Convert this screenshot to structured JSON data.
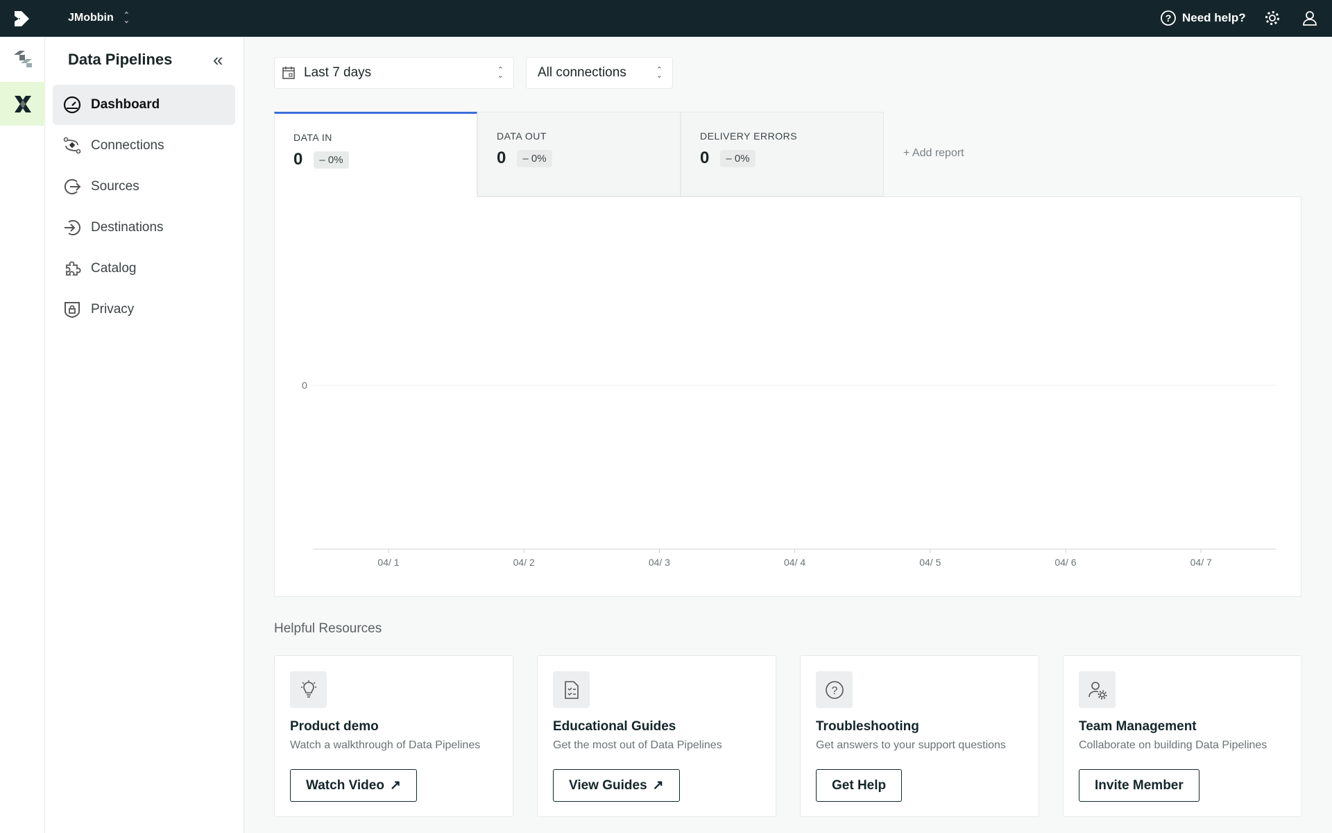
{
  "topbar": {
    "workspace": "JMobbin",
    "help": "Need help?"
  },
  "sidebar": {
    "title": "Data Pipelines",
    "items": [
      {
        "label": "Dashboard",
        "icon": "gauge-icon",
        "active": true
      },
      {
        "label": "Connections",
        "icon": "connections-icon"
      },
      {
        "label": "Sources",
        "icon": "source-icon"
      },
      {
        "label": "Destinations",
        "icon": "destination-icon"
      },
      {
        "label": "Catalog",
        "icon": "puzzle-icon"
      },
      {
        "label": "Privacy",
        "icon": "shield-lock-icon"
      }
    ]
  },
  "filters": {
    "range": "Last 7 days",
    "connections": "All connections"
  },
  "tabs": [
    {
      "label": "DATA IN",
      "value": "0",
      "change": "0%"
    },
    {
      "label": "DATA OUT",
      "value": "0",
      "change": "0%"
    },
    {
      "label": "DELIVERY ERRORS",
      "value": "0",
      "change": "0%"
    }
  ],
  "add_report": "+ Add report",
  "chart_data": {
    "type": "line",
    "categories": [
      "04/ 1",
      "04/ 2",
      "04/ 3",
      "04/ 4",
      "04/ 5",
      "04/ 6",
      "04/ 7"
    ],
    "values": [
      0,
      0,
      0,
      0,
      0,
      0,
      0
    ],
    "yticks": [
      "0"
    ],
    "accent": "#3b6fd9"
  },
  "resources": {
    "title": "Helpful Resources",
    "cards": [
      {
        "title": "Product demo",
        "desc": "Watch a walkthrough of Data Pipelines",
        "button": "Watch Video",
        "icon": "lightbulb-icon"
      },
      {
        "title": "Educational Guides",
        "desc": "Get the most out of Data Pipelines",
        "button": "View Guides",
        "icon": "checklist-doc-icon"
      },
      {
        "title": "Troubleshooting",
        "desc": "Get answers to your support questions",
        "button": "Get Help",
        "icon": "question-icon"
      },
      {
        "title": "Team Management",
        "desc": "Collaborate on building Data Pipelines",
        "button": "Invite Member",
        "icon": "user-gear-icon"
      }
    ]
  }
}
